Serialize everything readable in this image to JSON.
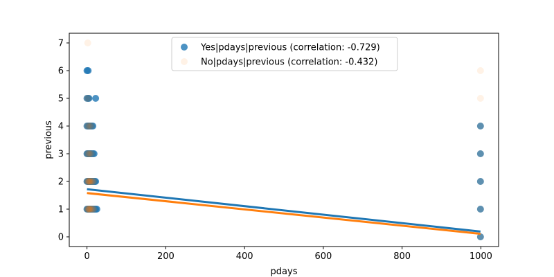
{
  "chart_data": {
    "type": "scatter",
    "title": "",
    "xlabel": "pdays",
    "ylabel": "previous",
    "xlim": [
      -45,
      1045
    ],
    "ylim": [
      -0.35,
      7.35
    ],
    "xticks": [
      0,
      200,
      400,
      600,
      800,
      1000
    ],
    "yticks": [
      0,
      1,
      2,
      3,
      4,
      5,
      6,
      7
    ],
    "grid": false,
    "legend_position": "top-center",
    "series": [
      {
        "name": "Yes|pdays|previous (correlation: -0.729)",
        "color": "#1f77b4",
        "alpha": 0.8,
        "points": [
          [
            0,
            1
          ],
          [
            2,
            1
          ],
          [
            3,
            1
          ],
          [
            4,
            1
          ],
          [
            5,
            1
          ],
          [
            6,
            1
          ],
          [
            7,
            1
          ],
          [
            8,
            1
          ],
          [
            10,
            1
          ],
          [
            12,
            1
          ],
          [
            14,
            1
          ],
          [
            16,
            1
          ],
          [
            18,
            1
          ],
          [
            20,
            1
          ],
          [
            22,
            1
          ],
          [
            25,
            1
          ],
          [
            0,
            2
          ],
          [
            2,
            2
          ],
          [
            3,
            2
          ],
          [
            4,
            2
          ],
          [
            5,
            2
          ],
          [
            6,
            2
          ],
          [
            7,
            2
          ],
          [
            8,
            2
          ],
          [
            10,
            2
          ],
          [
            12,
            2
          ],
          [
            14,
            2
          ],
          [
            16,
            2
          ],
          [
            18,
            2
          ],
          [
            20,
            2
          ],
          [
            22,
            2
          ],
          [
            0,
            3
          ],
          [
            2,
            3
          ],
          [
            4,
            3
          ],
          [
            6,
            3
          ],
          [
            8,
            3
          ],
          [
            10,
            3
          ],
          [
            12,
            3
          ],
          [
            15,
            3
          ],
          [
            18,
            3
          ],
          [
            0,
            4
          ],
          [
            3,
            4
          ],
          [
            6,
            4
          ],
          [
            9,
            4
          ],
          [
            12,
            4
          ],
          [
            15,
            4
          ],
          [
            0,
            5
          ],
          [
            3,
            5
          ],
          [
            5,
            5
          ],
          [
            22,
            5
          ],
          [
            0,
            6
          ],
          [
            3,
            6
          ],
          [
            999,
            0
          ],
          [
            999,
            1
          ],
          [
            999,
            2
          ],
          [
            999,
            3
          ],
          [
            999,
            4
          ]
        ],
        "fit": [
          [
            0,
            1.72
          ],
          [
            999,
            0.19
          ]
        ]
      },
      {
        "name": "No|pdays|previous (correlation: -0.432)",
        "color": "#ff7f0e",
        "alpha": 0.1,
        "points": [
          [
            0,
            1
          ],
          [
            2,
            1
          ],
          [
            3,
            1
          ],
          [
            4,
            1
          ],
          [
            5,
            1
          ],
          [
            6,
            1
          ],
          [
            7,
            1
          ],
          [
            8,
            1
          ],
          [
            10,
            1
          ],
          [
            12,
            1
          ],
          [
            14,
            1
          ],
          [
            16,
            1
          ],
          [
            18,
            1
          ],
          [
            0,
            2
          ],
          [
            2,
            2
          ],
          [
            3,
            2
          ],
          [
            4,
            2
          ],
          [
            5,
            2
          ],
          [
            6,
            2
          ],
          [
            7,
            2
          ],
          [
            8,
            2
          ],
          [
            10,
            2
          ],
          [
            12,
            2
          ],
          [
            14,
            2
          ],
          [
            16,
            2
          ],
          [
            18,
            2
          ],
          [
            0,
            3
          ],
          [
            3,
            3
          ],
          [
            5,
            3
          ],
          [
            7,
            3
          ],
          [
            10,
            3
          ],
          [
            13,
            3
          ],
          [
            0,
            4
          ],
          [
            3,
            4
          ],
          [
            6,
            4
          ],
          [
            9,
            4
          ],
          [
            12,
            4
          ],
          [
            0,
            5
          ],
          [
            3,
            5
          ],
          [
            2,
            7
          ],
          [
            999,
            0
          ],
          [
            999,
            1
          ],
          [
            999,
            2
          ],
          [
            999,
            3
          ],
          [
            999,
            4
          ],
          [
            999,
            5
          ],
          [
            999,
            6
          ]
        ],
        "fit": [
          [
            0,
            1.58
          ],
          [
            999,
            0.11
          ]
        ]
      }
    ]
  }
}
